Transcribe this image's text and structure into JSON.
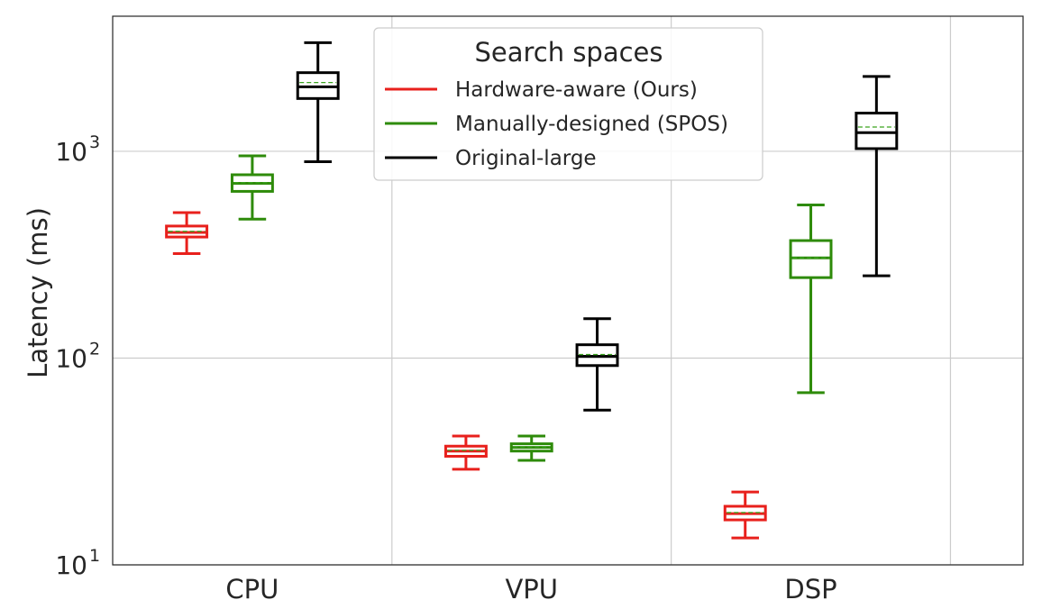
{
  "chart_data": {
    "type": "box",
    "title": "",
    "xlabel": "",
    "ylabel": "Latency (ms)",
    "yscale": "log",
    "ylim": [
      10,
      4500
    ],
    "grid": true,
    "categories": [
      "CPU",
      "VPU",
      "DSP"
    ],
    "yticks": [
      {
        "value": 10,
        "base": "10",
        "exp": "1"
      },
      {
        "value": 100,
        "base": "10",
        "exp": "2"
      },
      {
        "value": 1000,
        "base": "10",
        "exp": "3"
      }
    ],
    "legend": {
      "title": "Search spaces",
      "position": "top-center"
    },
    "series": [
      {
        "name": "Hardware-aware (Ours)",
        "color": "#e8201c",
        "boxes": [
          {
            "category": "CPU",
            "whisker_low": 320,
            "q1": 385,
            "median": 405,
            "mean": 410,
            "q3": 435,
            "whisker_high": 505
          },
          {
            "category": "VPU",
            "whisker_low": 29,
            "q1": 33.5,
            "median": 35.5,
            "mean": 35.8,
            "q3": 37.5,
            "whisker_high": 42
          },
          {
            "category": "DSP",
            "whisker_low": 13.5,
            "q1": 16.5,
            "median": 17.7,
            "mean": 17.9,
            "q3": 19.2,
            "whisker_high": 22.5
          }
        ]
      },
      {
        "name": "Manually-designed (SPOS)",
        "color": "#2e8b0a",
        "boxes": [
          {
            "category": "CPU",
            "whisker_low": 470,
            "q1": 640,
            "median": 700,
            "mean": 705,
            "q3": 770,
            "whisker_high": 950
          },
          {
            "category": "VPU",
            "whisker_low": 32,
            "q1": 35.5,
            "median": 37,
            "mean": 37.2,
            "q3": 38.5,
            "whisker_high": 42
          },
          {
            "category": "DSP",
            "whisker_low": 68,
            "q1": 245,
            "median": 305,
            "mean": 305,
            "q3": 370,
            "whisker_high": 550
          }
        ]
      },
      {
        "name": "Original-large",
        "color": "#000000",
        "boxes": [
          {
            "category": "CPU",
            "whisker_low": 890,
            "q1": 1800,
            "median": 2050,
            "mean": 2150,
            "q3": 2400,
            "whisker_high": 3350
          },
          {
            "category": "VPU",
            "whisker_low": 56,
            "q1": 92,
            "median": 102,
            "mean": 104,
            "q3": 116,
            "whisker_high": 155
          },
          {
            "category": "DSP",
            "whisker_low": 250,
            "q1": 1030,
            "median": 1230,
            "mean": 1310,
            "q3": 1530,
            "whisker_high": 2300
          }
        ]
      }
    ]
  }
}
